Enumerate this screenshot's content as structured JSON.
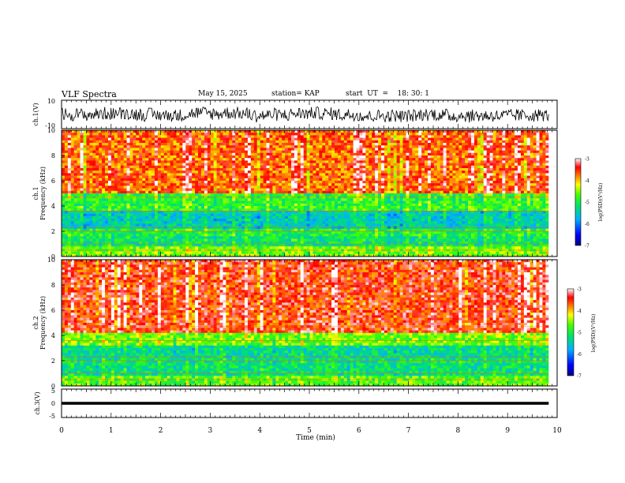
{
  "header": {
    "title": "VLF Spectra",
    "date": "May 15, 2025",
    "station": "station= KAP",
    "start_ut": "start  UT  =    18: 30: 1"
  },
  "chart_data": [
    {
      "type": "line",
      "name": "ch1-waveform",
      "ylabel": "ch.1(V)",
      "ylim": [
        -10,
        10
      ],
      "yticks": [
        "10",
        "-10"
      ],
      "xlim": [
        0,
        9.83
      ],
      "description_values": "voltage trace fluctuating roughly between -8 and 6 V"
    },
    {
      "type": "heatmap",
      "name": "ch1-spectrogram",
      "ylabel": "ch.1\nFrequency (kHz)",
      "ylim": [
        0,
        10
      ],
      "yticks": [
        "0",
        "2",
        "4",
        "6",
        "8",
        "10"
      ],
      "xlim": [
        0,
        9.83
      ],
      "bands": [
        {
          "from_khz": 0,
          "to_khz": 0.8,
          "level": -4.6
        },
        {
          "from_khz": 0.8,
          "to_khz": 1.6,
          "level": -5.2
        },
        {
          "from_khz": 1.6,
          "to_khz": 2.3,
          "level": -5.0
        },
        {
          "from_khz": 2.3,
          "to_khz": 3.6,
          "level": -5.5
        },
        {
          "from_khz": 3.6,
          "to_khz": 5.0,
          "level": -4.9
        },
        {
          "from_khz": 5.0,
          "to_khz": 10.0,
          "level": -3.7
        }
      ],
      "colorbar": {
        "label": "log(PSD)(V²/Hz)",
        "ticks": [
          "-3",
          "-4",
          "-5",
          "-6",
          "-7"
        ],
        "range": [
          -7,
          -3
        ]
      }
    },
    {
      "type": "heatmap",
      "name": "ch2-spectrogram",
      "ylabel": "ch.2\nFrequency (kHz)",
      "ylim": [
        0,
        10
      ],
      "yticks": [
        "0",
        "2",
        "4",
        "6",
        "8",
        "10"
      ],
      "xlim": [
        0,
        9.83
      ],
      "bands": [
        {
          "from_khz": 0,
          "to_khz": 0.8,
          "level": -4.7
        },
        {
          "from_khz": 0.8,
          "to_khz": 2.1,
          "level": -5.2
        },
        {
          "from_khz": 2.1,
          "to_khz": 3.3,
          "level": -5.3
        },
        {
          "from_khz": 3.3,
          "to_khz": 4.2,
          "level": -4.6
        },
        {
          "from_khz": 4.2,
          "to_khz": 10.0,
          "level": -3.5
        }
      ],
      "colorbar": {
        "label": "log(PSD)(V²/Hz)",
        "ticks": [
          "-3",
          "-4",
          "-5",
          "-6",
          "-7"
        ],
        "range": [
          -7,
          -3
        ]
      }
    },
    {
      "type": "line",
      "name": "ch3-waveform",
      "ylabel": "ch.3(V)",
      "ylim": [
        -5,
        5
      ],
      "yticks": [
        "5",
        "0",
        "-5"
      ],
      "xlim": [
        0,
        9.83
      ],
      "level_v": 0,
      "band_halfwidth_v": 0.5
    }
  ],
  "xaxis": {
    "label": "Time  (min)",
    "ticks": [
      "0",
      "1",
      "2",
      "3",
      "4",
      "5",
      "6",
      "7",
      "8",
      "9",
      "10"
    ],
    "range": [
      0,
      10
    ]
  }
}
